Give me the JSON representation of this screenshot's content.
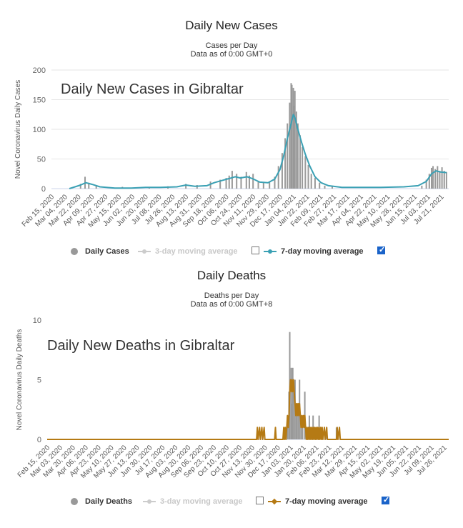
{
  "chart_data": [
    {
      "type": "bar",
      "title": "Daily New Cases",
      "subtitle_1": "Cases per Day",
      "subtitle_2": "Data as of 0:00 GMT+0",
      "overlay_title": "Daily New Cases in Gibraltar",
      "ylabel": "Novel Coronavirus Daily Cases",
      "ylim": [
        0,
        200
      ],
      "yticks": [
        "0",
        "50",
        "100",
        "150",
        "200"
      ],
      "grid": true,
      "bar_color": "#999999",
      "line_color": "#3aa0b4",
      "xtick_labels": [
        "Feb 15, 2020",
        "Mar 04, 2020",
        "Mar 22, 2020",
        "Apr 09, 2020",
        "Apr 27, 2020",
        "May 15, 2020",
        "Jun 02, 2020",
        "Jun 20, 2020",
        "Jul 08, 2020",
        "Jul 26, 2020",
        "Aug 13, 2020",
        "Aug 31, 2020",
        "Sep 18, 2020",
        "Oct 06, 2020",
        "Oct 24, 2020",
        "Nov 11, 2020",
        "Nov 29, 2020",
        "Dec 17, 2020",
        "Jan 04, 2021",
        "Jan 22, 2021",
        "Feb 09, 2021",
        "Feb 27, 2021",
        "Mar 17, 2021",
        "Apr 04, 2021",
        "Apr 22, 2021",
        "May 10, 2021",
        "May 28, 2021",
        "Jun 15, 2021",
        "Jul 03, 2021",
        "Jul 21, 2021"
      ],
      "x_start": "Feb 15, 2020",
      "x_end": "Jul 31, 2021",
      "series": [
        {
          "name": "Daily Cases",
          "kind": "bar",
          "points": [
            [
              "2020-03-25",
              8
            ],
            [
              "2020-03-31",
              20
            ],
            [
              "2020-04-05",
              10
            ],
            [
              "2020-04-15",
              5
            ],
            [
              "2020-05-20",
              3
            ],
            [
              "2020-06-25",
              3
            ],
            [
              "2020-07-20",
              4
            ],
            [
              "2020-08-13",
              8
            ],
            [
              "2020-08-28",
              6
            ],
            [
              "2020-09-15",
              12
            ],
            [
              "2020-09-28",
              15
            ],
            [
              "2020-10-06",
              18
            ],
            [
              "2020-10-10",
              22
            ],
            [
              "2020-10-14",
              30
            ],
            [
              "2020-10-20",
              25
            ],
            [
              "2020-10-26",
              20
            ],
            [
              "2020-11-02",
              28
            ],
            [
              "2020-11-06",
              22
            ],
            [
              "2020-11-11",
              25
            ],
            [
              "2020-11-18",
              12
            ],
            [
              "2020-11-25",
              10
            ],
            [
              "2020-12-03",
              12
            ],
            [
              "2020-12-10",
              20
            ],
            [
              "2020-12-15",
              38
            ],
            [
              "2020-12-20",
              60
            ],
            [
              "2020-12-24",
              85
            ],
            [
              "2020-12-27",
              110
            ],
            [
              "2020-12-30",
              145
            ],
            [
              "2021-01-01",
              178
            ],
            [
              "2021-01-02",
              175
            ],
            [
              "2021-01-04",
              170
            ],
            [
              "2021-01-05",
              140
            ],
            [
              "2021-01-06",
              165
            ],
            [
              "2021-01-08",
              130
            ],
            [
              "2021-01-10",
              110
            ],
            [
              "2021-01-13",
              90
            ],
            [
              "2021-01-16",
              70
            ],
            [
              "2021-01-20",
              55
            ],
            [
              "2021-01-24",
              40
            ],
            [
              "2021-01-28",
              25
            ],
            [
              "2021-02-02",
              18
            ],
            [
              "2021-02-08",
              10
            ],
            [
              "2021-02-15",
              5
            ],
            [
              "2021-02-25",
              3
            ],
            [
              "2021-06-25",
              5
            ],
            [
              "2021-07-01",
              15
            ],
            [
              "2021-07-05",
              25
            ],
            [
              "2021-07-08",
              35
            ],
            [
              "2021-07-10",
              38
            ],
            [
              "2021-07-13",
              33
            ],
            [
              "2021-07-16",
              38
            ],
            [
              "2021-07-19",
              30
            ],
            [
              "2021-07-22",
              36
            ],
            [
              "2021-07-25",
              30
            ],
            [
              "2021-07-28",
              28
            ]
          ]
        },
        {
          "name": "3-day moving average",
          "kind": "line",
          "visible": false
        },
        {
          "name": "7-day moving average",
          "kind": "line",
          "visible": true,
          "points": [
            [
              "2020-03-10",
              0
            ],
            [
              "2020-03-25",
              6
            ],
            [
              "2020-04-01",
              10
            ],
            [
              "2020-04-10",
              7
            ],
            [
              "2020-04-20",
              3
            ],
            [
              "2020-05-10",
              1
            ],
            [
              "2020-06-01",
              1
            ],
            [
              "2020-06-20",
              2
            ],
            [
              "2020-07-10",
              2
            ],
            [
              "2020-08-01",
              3
            ],
            [
              "2020-08-13",
              6
            ],
            [
              "2020-08-25",
              4
            ],
            [
              "2020-09-10",
              5
            ],
            [
              "2020-09-20",
              10
            ],
            [
              "2020-10-01",
              14
            ],
            [
              "2020-10-10",
              17
            ],
            [
              "2020-10-18",
              20
            ],
            [
              "2020-10-25",
              18
            ],
            [
              "2020-11-03",
              20
            ],
            [
              "2020-11-10",
              17
            ],
            [
              "2020-11-20",
              11
            ],
            [
              "2020-12-01",
              10
            ],
            [
              "2020-12-10",
              16
            ],
            [
              "2020-12-17",
              32
            ],
            [
              "2020-12-22",
              55
            ],
            [
              "2020-12-27",
              85
            ],
            [
              "2021-01-01",
              110
            ],
            [
              "2021-01-04",
              125
            ],
            [
              "2021-01-06",
              120
            ],
            [
              "2021-01-10",
              100
            ],
            [
              "2021-01-15",
              78
            ],
            [
              "2021-01-20",
              58
            ],
            [
              "2021-01-26",
              38
            ],
            [
              "2021-02-02",
              20
            ],
            [
              "2021-02-10",
              10
            ],
            [
              "2021-02-20",
              5
            ],
            [
              "2021-03-10",
              2
            ],
            [
              "2021-04-01",
              2
            ],
            [
              "2021-05-01",
              2
            ],
            [
              "2021-06-01",
              3
            ],
            [
              "2021-06-20",
              5
            ],
            [
              "2021-07-01",
              12
            ],
            [
              "2021-07-08",
              25
            ],
            [
              "2021-07-14",
              30
            ],
            [
              "2021-07-20",
              28
            ],
            [
              "2021-07-28",
              27
            ]
          ]
        }
      ],
      "legend": [
        "Daily Cases",
        "3-day moving average",
        "7-day moving average"
      ]
    },
    {
      "type": "bar",
      "title": "Daily Deaths",
      "subtitle_1": "Deaths per Day",
      "subtitle_2": "Data as of 0:00 GMT+8",
      "overlay_title": "Daily New Deaths in Gibraltar",
      "ylabel": "Novel Coronavirus Daily Deaths",
      "ylim": [
        0,
        10
      ],
      "yticks": [
        "0",
        "5",
        "10"
      ],
      "grid": false,
      "bar_color": "#999999",
      "line_color": "#b57a14",
      "xtick_labels": [
        "Feb 15, 2020",
        "Mar 03, 2020",
        "Mar 20, 2020",
        "Apr 06, 2020",
        "Apr 23, 2020",
        "May 10, 2020",
        "May 27, 2020",
        "Jun 13, 2020",
        "Jun 30, 2020",
        "Jul 17, 2020",
        "Aug 03, 2020",
        "Aug 20, 2020",
        "Sep 06, 2020",
        "Sep 23, 2020",
        "Oct 10, 2020",
        "Oct 27, 2020",
        "Nov 13, 2020",
        "Nov 30, 2020",
        "Dec 17, 2020",
        "Jan 03, 2021",
        "Jan 20, 2021",
        "Feb 06, 2021",
        "Feb 23, 2021",
        "Mar 12, 2021",
        "Mar 29, 2021",
        "Apr 15, 2021",
        "May 02, 2021",
        "May 19, 2021",
        "Jun 05, 2021",
        "Jun 22, 2021",
        "Jul 09, 2021",
        "Jul 26, 2021"
      ],
      "x_start": "Feb 15, 2020",
      "x_end": "Aug 01, 2021",
      "series": [
        {
          "name": "Daily Deaths",
          "kind": "bar",
          "points": [
            [
              "2020-12-27",
              1
            ],
            [
              "2020-12-30",
              2
            ],
            [
              "2021-01-01",
              4
            ],
            [
              "2021-01-02",
              9
            ],
            [
              "2021-01-04",
              6
            ],
            [
              "2021-01-05",
              3
            ],
            [
              "2021-01-06",
              6
            ],
            [
              "2021-01-07",
              4
            ],
            [
              "2021-01-09",
              5
            ],
            [
              "2021-01-11",
              2
            ],
            [
              "2021-01-13",
              3
            ],
            [
              "2021-01-15",
              5
            ],
            [
              "2021-01-17",
              2
            ],
            [
              "2021-01-19",
              2
            ],
            [
              "2021-01-22",
              4
            ],
            [
              "2021-01-25",
              1
            ],
            [
              "2021-01-28",
              2
            ],
            [
              "2021-02-02",
              2
            ],
            [
              "2021-02-05",
              1
            ],
            [
              "2021-02-10",
              2
            ],
            [
              "2021-02-20",
              1
            ],
            [
              "2021-03-05",
              1
            ]
          ]
        },
        {
          "name": "3-day moving average",
          "kind": "line",
          "visible": false
        },
        {
          "name": "7-day moving average",
          "kind": "line",
          "visible": true,
          "points": [
            [
              "2020-02-15",
              0
            ],
            [
              "2020-11-19",
              0
            ],
            [
              "2020-11-20",
              1
            ],
            [
              "2020-11-21",
              0
            ],
            [
              "2020-11-23",
              1
            ],
            [
              "2020-11-24",
              0
            ],
            [
              "2020-11-26",
              1
            ],
            [
              "2020-11-27",
              0
            ],
            [
              "2020-11-29",
              1
            ],
            [
              "2020-11-30",
              0
            ],
            [
              "2020-12-13",
              0
            ],
            [
              "2020-12-14",
              1
            ],
            [
              "2020-12-15",
              0
            ],
            [
              "2020-12-24",
              0
            ],
            [
              "2020-12-25",
              1
            ],
            [
              "2020-12-26",
              0
            ],
            [
              "2020-12-27",
              1
            ],
            [
              "2020-12-28",
              0
            ],
            [
              "2020-12-29",
              1
            ],
            [
              "2020-12-30",
              2
            ],
            [
              "2020-12-31",
              1
            ],
            [
              "2021-01-01",
              2
            ],
            [
              "2021-01-02",
              4
            ],
            [
              "2021-01-03",
              5
            ],
            [
              "2021-01-04",
              4
            ],
            [
              "2021-01-05",
              5
            ],
            [
              "2021-01-06",
              4
            ],
            [
              "2021-01-07",
              5
            ],
            [
              "2021-01-08",
              4
            ],
            [
              "2021-01-09",
              3
            ],
            [
              "2021-01-10",
              2
            ],
            [
              "2021-01-11",
              3
            ],
            [
              "2021-01-12",
              2
            ],
            [
              "2021-01-13",
              3
            ],
            [
              "2021-01-14",
              2
            ],
            [
              "2021-01-15",
              3
            ],
            [
              "2021-01-16",
              2
            ],
            [
              "2021-01-17",
              1
            ],
            [
              "2021-01-18",
              2
            ],
            [
              "2021-01-19",
              1
            ],
            [
              "2021-01-20",
              2
            ],
            [
              "2021-01-21",
              1
            ],
            [
              "2021-01-22",
              2
            ],
            [
              "2021-01-23",
              1
            ],
            [
              "2021-01-24",
              0
            ],
            [
              "2021-01-25",
              1
            ],
            [
              "2021-01-26",
              0
            ],
            [
              "2021-01-27",
              1
            ],
            [
              "2021-01-28",
              0
            ],
            [
              "2021-01-29",
              1
            ],
            [
              "2021-01-30",
              0
            ],
            [
              "2021-01-31",
              1
            ],
            [
              "2021-02-01",
              0
            ],
            [
              "2021-02-02",
              1
            ],
            [
              "2021-02-03",
              0
            ],
            [
              "2021-02-04",
              1
            ],
            [
              "2021-02-05",
              0
            ],
            [
              "2021-02-06",
              1
            ],
            [
              "2021-02-07",
              0
            ],
            [
              "2021-02-08",
              1
            ],
            [
              "2021-02-09",
              0
            ],
            [
              "2021-02-10",
              1
            ],
            [
              "2021-02-11",
              0
            ],
            [
              "2021-02-12",
              1
            ],
            [
              "2021-02-13",
              0
            ],
            [
              "2021-02-14",
              1
            ],
            [
              "2021-02-15",
              0
            ],
            [
              "2021-02-17",
              1
            ],
            [
              "2021-02-18",
              0
            ],
            [
              "2021-02-20",
              1
            ],
            [
              "2021-02-21",
              0
            ],
            [
              "2021-03-05",
              0
            ],
            [
              "2021-03-06",
              1
            ],
            [
              "2021-03-07",
              0
            ],
            [
              "2021-03-09",
              1
            ],
            [
              "2021-03-10",
              0
            ],
            [
              "2021-08-01",
              0
            ]
          ]
        }
      ],
      "legend": [
        "Daily Deaths",
        "3-day moving average",
        "7-day moving average"
      ]
    }
  ]
}
